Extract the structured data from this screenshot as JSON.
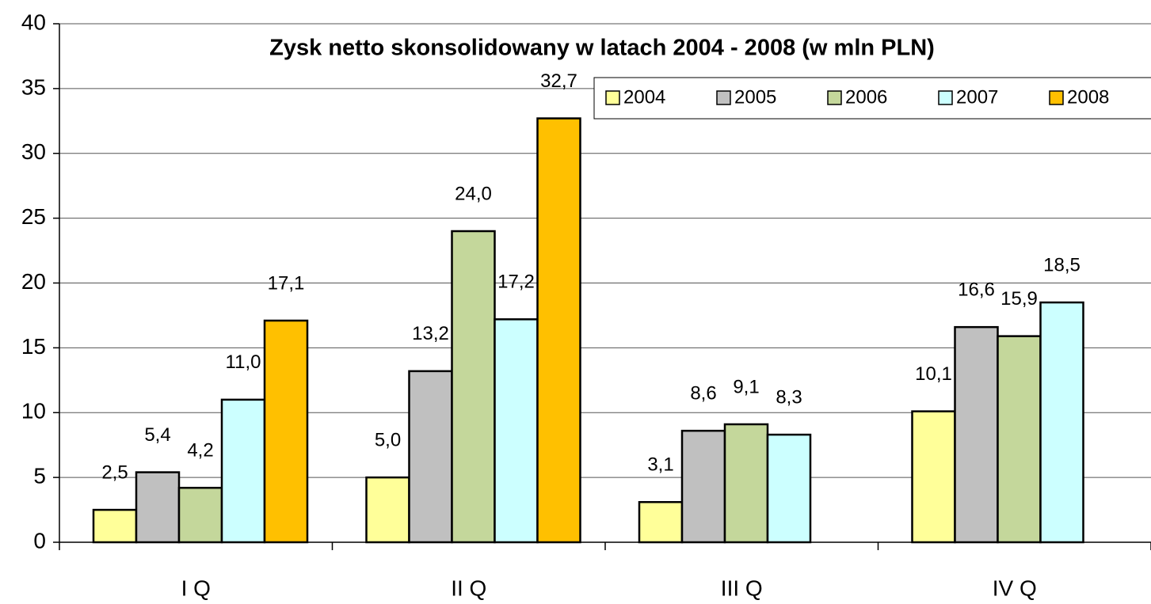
{
  "chart_data": {
    "type": "bar",
    "title": "Zysk netto skonsolidowany w latach 2004 - 2008 (w mln PLN)",
    "categories": [
      "I Q",
      "II Q",
      "III Q",
      "IV Q"
    ],
    "series": [
      {
        "name": "2004",
        "color": "#ffff99",
        "values": [
          2.5,
          5.0,
          3.1,
          10.1
        ],
        "value_labels": [
          "2,5",
          "5,0",
          "3,1",
          "10,1"
        ]
      },
      {
        "name": "2005",
        "color": "#c0c0c0",
        "values": [
          5.4,
          13.2,
          8.6,
          16.6
        ],
        "value_labels": [
          "5,4",
          "13,2",
          "8,6",
          "16,6"
        ]
      },
      {
        "name": "2006",
        "color": "#c4d79b",
        "values": [
          4.2,
          24.0,
          9.1,
          15.9
        ],
        "value_labels": [
          "4,2",
          "24,0",
          "9,1",
          "15,9"
        ]
      },
      {
        "name": "2007",
        "color": "#ccffff",
        "values": [
          11.0,
          17.2,
          8.3,
          18.5
        ],
        "value_labels": [
          "11,0",
          "17,2",
          "8,3",
          "18,5"
        ]
      },
      {
        "name": "2008",
        "color": "#ffc000",
        "values": [
          17.1,
          32.7,
          null,
          null
        ],
        "value_labels": [
          "17,1",
          "32,7",
          null,
          null
        ]
      }
    ],
    "ylim": [
      0,
      40
    ],
    "yticks": [
      0,
      5,
      10,
      15,
      20,
      25,
      30,
      35,
      40
    ],
    "grid": true,
    "legend": "top-right"
  }
}
